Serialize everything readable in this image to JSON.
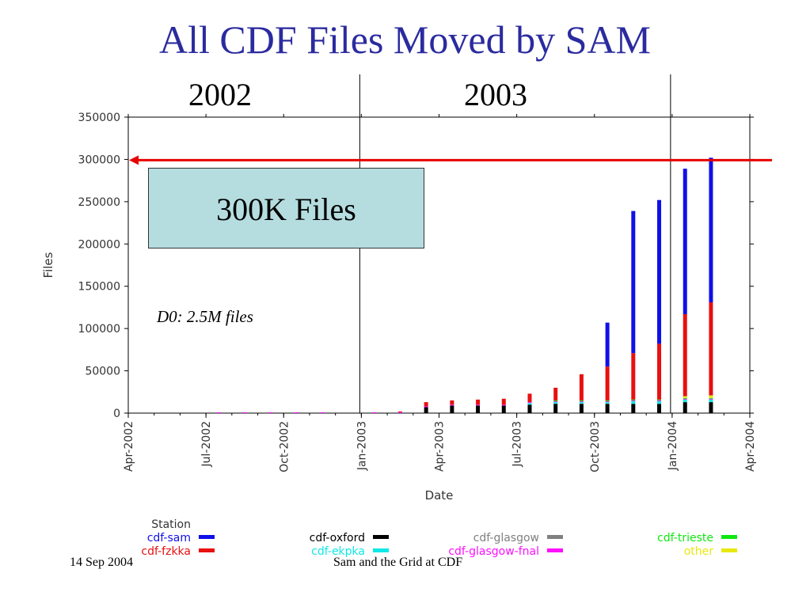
{
  "slide": {
    "title": "All CDF Files Moved by SAM",
    "year_left": "2002",
    "year_right": "2003",
    "callout": "300K Files",
    "note": "D0: 2.5M files",
    "footer_left": "14 Sep 2004",
    "footer_center": "Sam and the Grid at CDF"
  },
  "colors": {
    "title": "#2b2b9f",
    "cdf-sam": "#1010e8",
    "cdf-fzkka": "#e81010",
    "cdf-oxford": "#000000",
    "cdf-ekpka": "#10e8e8",
    "cdf-glasgow": "#808080",
    "cdf-glasgow-fnal": "#ff10ff",
    "cdf-trieste": "#10e810",
    "other": "#e8e810",
    "reference_line": "#e80000"
  },
  "chart_data": {
    "type": "bar",
    "stacked": true,
    "xlabel": "Date",
    "ylabel": "Files",
    "ylim": [
      0,
      350000
    ],
    "y_ticks": [
      "0",
      "50000",
      "100000",
      "150000",
      "200000",
      "250000",
      "300000",
      "350000"
    ],
    "y_tick_values": [
      0,
      50000,
      100000,
      150000,
      200000,
      250000,
      300000,
      350000
    ],
    "x_ticks": [
      "Apr-2002",
      "Jul-2002",
      "Oct-2002",
      "Jan-2003",
      "Apr-2003",
      "Jul-2003",
      "Oct-2003",
      "Jan-2004",
      "Apr-2004"
    ],
    "xlim": [
      "2002-04",
      "2004-04"
    ],
    "grid": false,
    "reference_line": 300000,
    "year_dividers": [
      "2003-01",
      "2004-01"
    ],
    "categories": [
      "2002-07",
      "2002-08",
      "2002-09",
      "2002-10",
      "2002-11",
      "2002-12",
      "2003-01",
      "2003-02",
      "2003-03",
      "2003-04",
      "2003-05",
      "2003-06",
      "2003-07",
      "2003-08",
      "2003-09",
      "2003-10",
      "2003-11",
      "2003-12",
      "2004-01",
      "2004-02"
    ],
    "legend_title": "Station",
    "legend_position": "bottom",
    "series": [
      {
        "name": "cdf-oxford",
        "values": [
          0,
          0,
          0,
          0,
          0,
          0,
          0,
          0,
          7000,
          9000,
          9000,
          9000,
          10000,
          11000,
          11000,
          11000,
          11000,
          11000,
          13000,
          13000
        ]
      },
      {
        "name": "cdf-ekpka",
        "values": [
          0,
          0,
          0,
          0,
          0,
          0,
          0,
          0,
          0,
          0,
          0,
          0,
          2000,
          2000,
          2000,
          2000,
          3000,
          3000,
          3000,
          3000
        ]
      },
      {
        "name": "cdf-glasgow",
        "values": [
          0,
          0,
          0,
          0,
          0,
          0,
          0,
          0,
          0,
          0,
          0,
          0,
          0,
          0,
          0,
          0,
          0,
          0,
          0,
          0
        ]
      },
      {
        "name": "cdf-glasgow-fnal",
        "values": [
          1000,
          1000,
          1000,
          1000,
          1000,
          0,
          1000,
          1000,
          1000,
          1000,
          1000,
          1000,
          1000,
          1000,
          1000,
          1000,
          1000,
          1000,
          1000,
          1000
        ]
      },
      {
        "name": "cdf-trieste",
        "values": [
          0,
          0,
          0,
          0,
          0,
          0,
          0,
          0,
          0,
          0,
          0,
          0,
          0,
          1000,
          1000,
          1000,
          1000,
          1000,
          1000,
          1000
        ]
      },
      {
        "name": "other",
        "values": [
          0,
          0,
          0,
          0,
          0,
          0,
          0,
          0,
          0,
          0,
          0,
          0,
          0,
          0,
          0,
          0,
          0,
          0,
          2000,
          3000
        ]
      },
      {
        "name": "cdf-fzkka",
        "values": [
          0,
          0,
          0,
          0,
          0,
          0,
          0,
          1000,
          5000,
          5000,
          6000,
          7000,
          10000,
          15000,
          31000,
          40000,
          55000,
          66000,
          97000,
          110000
        ]
      },
      {
        "name": "cdf-sam",
        "values": [
          0,
          0,
          0,
          0,
          0,
          0,
          0,
          0,
          0,
          0,
          0,
          0,
          0,
          0,
          0,
          52000,
          168000,
          170000,
          172000,
          171000
        ]
      }
    ]
  }
}
